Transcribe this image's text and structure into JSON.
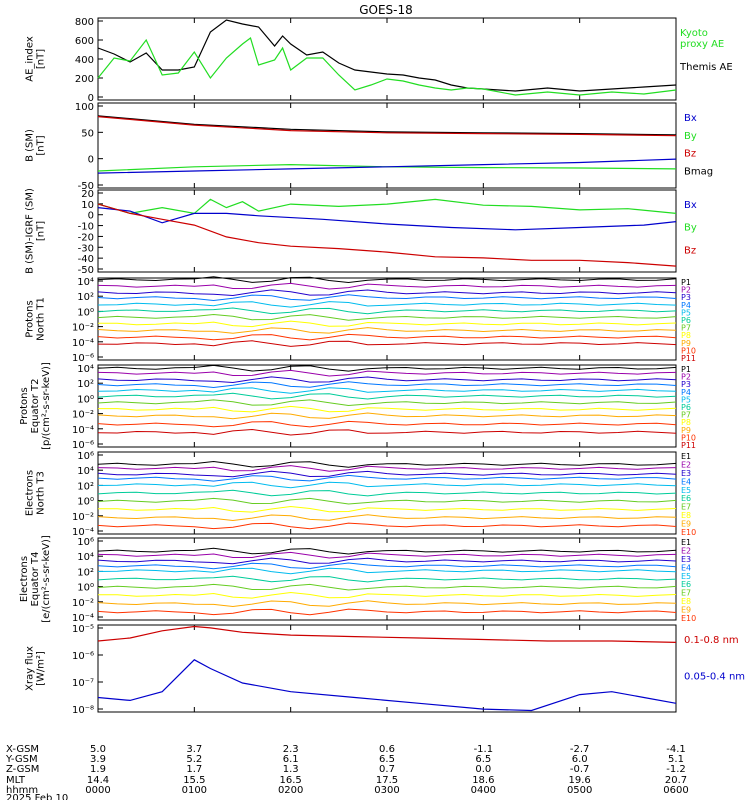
{
  "title": "GOES-18",
  "colors": {
    "black": "#000000",
    "red": "#cc0000",
    "green": "#22dd22",
    "blue": "#0000cc",
    "p_scale": [
      "#000000",
      "#9900aa",
      "#2200cc",
      "#0077ff",
      "#00bbee",
      "#00cc99",
      "#66cc22",
      "#ffff00",
      "#ffaa00",
      "#ff3300",
      "#cc0000"
    ],
    "e_scale": [
      "#000000",
      "#9900aa",
      "#2200cc",
      "#0077ff",
      "#00bbee",
      "#00cc99",
      "#66cc22",
      "#ffff00",
      "#ffaa00",
      "#ff3300"
    ]
  },
  "chart_data": [
    {
      "type": "line",
      "id": "ae",
      "ylabel": "AE_index\n[nT]",
      "yticks": [
        "800",
        "600",
        "400",
        "200",
        "0"
      ],
      "ylim": [
        0,
        820
      ],
      "legend": [
        {
          "label": "Kyoto\nproxy AE",
          "color": "green"
        },
        {
          "label": "Themis AE",
          "color": "black"
        }
      ],
      "series": [
        {
          "name": "Themis AE",
          "color": "black",
          "x": [
            0,
            10,
            20,
            30,
            40,
            50,
            60,
            70,
            80,
            90,
            100,
            110,
            115,
            120,
            130,
            140,
            150,
            160,
            170,
            180,
            190,
            200,
            210,
            220,
            230,
            240,
            260,
            280,
            300,
            320,
            340,
            360
          ],
          "y": [
            520,
            460,
            380,
            470,
            300,
            300,
            330,
            680,
            800,
            760,
            730,
            540,
            640,
            560,
            450,
            480,
            370,
            300,
            280,
            260,
            250,
            220,
            200,
            150,
            120,
            110,
            90,
            120,
            90,
            110,
            130,
            150
          ]
        },
        {
          "name": "Kyoto proxy AE",
          "color": "green",
          "x": [
            0,
            10,
            20,
            30,
            40,
            50,
            60,
            70,
            80,
            90,
            95,
            100,
            110,
            115,
            120,
            130,
            140,
            150,
            160,
            170,
            180,
            190,
            200,
            210,
            220,
            230,
            240,
            260,
            280,
            300,
            320,
            340,
            360
          ],
          "y": [
            220,
            420,
            390,
            600,
            250,
            270,
            480,
            220,
            420,
            560,
            620,
            350,
            400,
            520,
            300,
            420,
            420,
            250,
            100,
            150,
            210,
            190,
            150,
            120,
            100,
            120,
            110,
            50,
            80,
            50,
            80,
            60,
            100
          ]
        }
      ]
    },
    {
      "type": "line",
      "id": "bsm",
      "ylabel": "B (SM)\n[nT]",
      "yticks": [
        "100",
        "50",
        "0",
        "-50"
      ],
      "ylim": [
        -60,
        140
      ],
      "legend": [
        {
          "label": "Bx",
          "color": "blue"
        },
        {
          "label": "By",
          "color": "green"
        },
        {
          "label": "Bz",
          "color": "red"
        },
        {
          "label": "Bmag",
          "color": "black"
        }
      ],
      "series": [
        {
          "name": "Bmag",
          "color": "black",
          "x": [
            0,
            60,
            120,
            180,
            240,
            300,
            360
          ],
          "y": [
            110,
            90,
            78,
            72,
            70,
            68,
            65
          ]
        },
        {
          "name": "Bz",
          "color": "red",
          "x": [
            0,
            60,
            120,
            180,
            240,
            300,
            360
          ],
          "y": [
            108,
            88,
            75,
            70,
            68,
            66,
            63
          ]
        },
        {
          "name": "By",
          "color": "green",
          "x": [
            0,
            60,
            120,
            180,
            240,
            300,
            360
          ],
          "y": [
            -20,
            -10,
            -5,
            -10,
            -12,
            -13,
            -15
          ]
        },
        {
          "name": "Bx",
          "color": "blue",
          "x": [
            0,
            60,
            120,
            180,
            240,
            300,
            360
          ],
          "y": [
            -25,
            -20,
            -15,
            -10,
            -5,
            0,
            8
          ]
        }
      ]
    },
    {
      "type": "line",
      "id": "bdelta",
      "ylabel": "B (SM)-IGRF (SM)\n[nT]",
      "yticks": [
        "20",
        "10",
        "0",
        "-10",
        "-20",
        "-30",
        "-40",
        "-50"
      ],
      "ylim": [
        -50,
        20
      ],
      "legend": [
        {
          "label": "Bx",
          "color": "blue"
        },
        {
          "label": "By",
          "color": "green"
        },
        {
          "label": "Bz",
          "color": "red"
        }
      ],
      "series": [
        {
          "name": "By",
          "color": "green",
          "x": [
            0,
            20,
            40,
            60,
            70,
            80,
            90,
            100,
            120,
            150,
            180,
            210,
            240,
            270,
            300,
            330,
            360
          ],
          "y": [
            8,
            0,
            5,
            0,
            12,
            5,
            10,
            2,
            8,
            6,
            8,
            12,
            7,
            6,
            3,
            4,
            0
          ]
        },
        {
          "name": "Bx",
          "color": "blue",
          "x": [
            0,
            20,
            40,
            60,
            80,
            100,
            140,
            180,
            220,
            260,
            300,
            340,
            360
          ],
          "y": [
            5,
            2,
            -8,
            0,
            0,
            -2,
            -5,
            -9,
            -12,
            -14,
            -12,
            -10,
            -7
          ]
        },
        {
          "name": "Bz",
          "color": "red",
          "x": [
            0,
            20,
            40,
            60,
            80,
            100,
            120,
            150,
            180,
            210,
            240,
            270,
            300,
            330,
            360
          ],
          "y": [
            8,
            0,
            -5,
            -10,
            -20,
            -25,
            -28,
            -30,
            -33,
            -37,
            -38,
            -40,
            -40,
            -42,
            -45
          ]
        }
      ]
    },
    {
      "type": "line",
      "id": "p_north",
      "log": true,
      "ylabel": "Protons\nNorth T1",
      "yticks": [
        "10⁴",
        "10²",
        "10⁰",
        "10⁻²",
        "10⁻⁴",
        "10⁻⁶"
      ],
      "ylim": [
        -6,
        4
      ],
      "channels": [
        "P1",
        "P2",
        "P3",
        "P4",
        "P5",
        "P6",
        "P7",
        "P8",
        "P9",
        "P10",
        "P11"
      ],
      "levels": [
        3.8,
        3.0,
        2.2,
        1.6,
        0.8,
        0.0,
        -0.8,
        -1.6,
        -2.4,
        -3.2,
        -4.0
      ]
    },
    {
      "type": "line",
      "id": "p_equator",
      "log": true,
      "ylabel": "Protons\nEquator T2\n[p/(cm²-s-sr-keV)]",
      "yticks": [
        "10⁴",
        "10²",
        "10⁰",
        "10⁻²",
        "10⁻⁴",
        "10⁻⁶"
      ],
      "ylim": [
        -6,
        4
      ],
      "channels": [
        "P1",
        "P2",
        "P3",
        "P4",
        "P5",
        "P6",
        "P7",
        "P8",
        "P9",
        "P10",
        "P11"
      ],
      "levels": [
        3.6,
        3.0,
        2.2,
        1.6,
        0.9,
        0.2,
        -0.6,
        -1.4,
        -2.2,
        -3.2,
        -4.2
      ]
    },
    {
      "type": "line",
      "id": "e_north",
      "log": true,
      "ylabel": "Electrons\nNorth T3",
      "yticks": [
        "10⁶",
        "10⁴",
        "10²",
        "10⁰",
        "10⁻²",
        "10⁻⁴"
      ],
      "ylim": [
        -4,
        6
      ],
      "channels": [
        "E1",
        "E2",
        "E3",
        "E4",
        "E5",
        "E6",
        "E7",
        "E8",
        "E9",
        "E10"
      ],
      "levels": [
        4.5,
        4.0,
        3.3,
        2.8,
        2.0,
        1.0,
        0.0,
        -1.0,
        -2.0,
        -3.0
      ]
    },
    {
      "type": "line",
      "id": "e_equator",
      "log": true,
      "ylabel": "Electrons\nEquator T4\n[e/(cm²-s-sr-keV)]",
      "yticks": [
        "10⁶",
        "10⁴",
        "10²",
        "10⁰",
        "10⁻²",
        "10⁻⁴"
      ],
      "ylim": [
        -4,
        6
      ],
      "channels": [
        "E1",
        "E2",
        "E3",
        "E4",
        "E5",
        "E6",
        "E7",
        "E8",
        "E9",
        "E10"
      ],
      "levels": [
        4.4,
        3.9,
        3.2,
        2.6,
        2.0,
        1.0,
        0.0,
        -1.0,
        -2.0,
        -3.0
      ]
    },
    {
      "type": "line",
      "id": "xray",
      "log": true,
      "ylabel": "Xray flux\n[W/m²]",
      "yticks": [
        "10⁻⁵",
        "10⁻⁶",
        "10⁻⁷",
        "10⁻⁸"
      ],
      "ylim": [
        -8,
        -5
      ],
      "legend": [
        {
          "label": "0.1-0.8 nm",
          "color": "red"
        },
        {
          "label": "0.05-0.4 nm",
          "color": "blue"
        }
      ],
      "series": [
        {
          "name": "0.1-0.8 nm",
          "color": "red",
          "x": [
            0,
            20,
            40,
            60,
            70,
            90,
            120,
            160,
            200,
            240,
            280,
            320,
            360
          ],
          "y": [
            -5.55,
            -5.45,
            -5.2,
            -5.05,
            -5.1,
            -5.25,
            -5.35,
            -5.4,
            -5.45,
            -5.5,
            -5.55,
            -5.55,
            -5.6
          ]
        },
        {
          "name": "0.05-0.4 nm",
          "color": "blue",
          "x": [
            0,
            20,
            40,
            60,
            70,
            90,
            120,
            160,
            200,
            240,
            270,
            300,
            320,
            340,
            360
          ],
          "y": [
            -7.5,
            -7.6,
            -7.3,
            -6.2,
            -6.5,
            -7.0,
            -7.3,
            -7.5,
            -7.7,
            -7.9,
            -7.95,
            -7.4,
            -7.3,
            -7.5,
            -7.7
          ]
        }
      ]
    }
  ],
  "ephemeris": {
    "labels": [
      "X-GSM",
      "Y-GSM",
      "Z-GSM",
      "MLT",
      "hhmm",
      "2025 Feb 10"
    ],
    "columns": [
      {
        "x": [
          "5.0",
          "3.9",
          "1.9",
          "14.4",
          "0000"
        ]
      },
      {
        "x": [
          "3.7",
          "5.2",
          "1.7",
          "15.5",
          "0100"
        ]
      },
      {
        "x": [
          "2.3",
          "6.1",
          "1.3",
          "16.5",
          "0200"
        ]
      },
      {
        "x": [
          "0.6",
          "6.5",
          "0.7",
          "17.5",
          "0300"
        ]
      },
      {
        "x": [
          "-1.1",
          "6.5",
          "0.0",
          "18.6",
          "0400"
        ]
      },
      {
        "x": [
          "-2.7",
          "6.0",
          "-0.7",
          "19.6",
          "0500"
        ]
      },
      {
        "x": [
          "-4.1",
          "5.1",
          "-1.2",
          "20.7",
          "0600"
        ]
      }
    ]
  }
}
